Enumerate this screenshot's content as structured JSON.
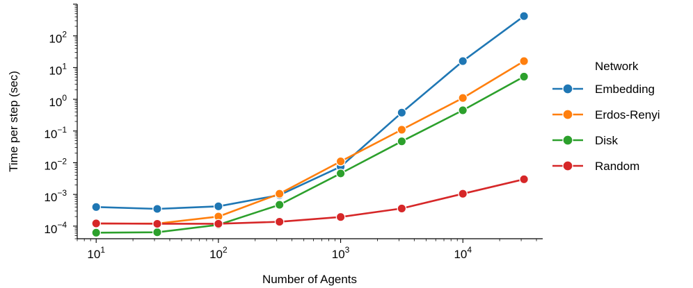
{
  "chart_data": {
    "type": "line",
    "xlabel": "Number of Agents",
    "ylabel": "Time per step (sec)",
    "xscale": "log",
    "yscale": "log",
    "xlim": [
      7,
      45000
    ],
    "ylim": [
      4e-05,
      1000
    ],
    "x": [
      10,
      31.6,
      100,
      316,
      1000,
      3162,
      10000,
      31623
    ],
    "x_ticks": [
      {
        "value": 10,
        "base": "10",
        "exp": "1"
      },
      {
        "value": 100,
        "base": "10",
        "exp": "2"
      },
      {
        "value": 1000,
        "base": "10",
        "exp": "3"
      },
      {
        "value": 10000,
        "base": "10",
        "exp": "4"
      }
    ],
    "y_ticks": [
      {
        "value": 0.0001,
        "base": "10",
        "exp": "−4"
      },
      {
        "value": 0.001,
        "base": "10",
        "exp": "−3"
      },
      {
        "value": 0.01,
        "base": "10",
        "exp": "−2"
      },
      {
        "value": 0.1,
        "base": "10",
        "exp": "−1"
      },
      {
        "value": 1,
        "base": "10",
        "exp": "0"
      },
      {
        "value": 10,
        "base": "10",
        "exp": "1"
      },
      {
        "value": 100,
        "base": "10",
        "exp": "2"
      }
    ],
    "legend": {
      "title": "Network",
      "position": "right"
    },
    "grid": false,
    "series": [
      {
        "name": "Embedding",
        "color": "#1f77b4",
        "values": [
          0.0004,
          0.00035,
          0.00042,
          0.00095,
          0.0075,
          0.38,
          16,
          420
        ]
      },
      {
        "name": "Erdos-Renyi",
        "color": "#ff7f0e",
        "values": [
          0.00012,
          0.00012,
          0.0002,
          0.00105,
          0.011,
          0.11,
          1.1,
          16
        ]
      },
      {
        "name": "Disk",
        "color": "#2ca02c",
        "values": [
          6.2e-05,
          6.4e-05,
          0.00011,
          0.00047,
          0.0046,
          0.047,
          0.45,
          5.2
        ]
      },
      {
        "name": "Random",
        "color": "#d62728",
        "values": [
          0.000122,
          0.000118,
          0.000119,
          0.000137,
          0.000194,
          0.00036,
          0.00105,
          0.003
        ]
      }
    ]
  }
}
